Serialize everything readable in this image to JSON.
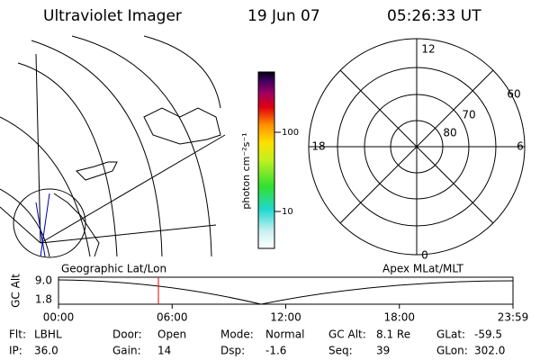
{
  "header": {
    "title": "Ultraviolet Imager",
    "date": "19 Jun 07",
    "time": "05:26:33 UT"
  },
  "colorbar": {
    "unit": "photon cm⁻²s⁻¹",
    "ticks": [
      "100",
      "10"
    ]
  },
  "polar": {
    "clock": [
      "12",
      "18",
      "6",
      "0"
    ],
    "lat": [
      "60",
      "70",
      "80"
    ]
  },
  "strip": {
    "left_label": "Geographic Lat/Lon",
    "right_label": "Apex MLat/MLT",
    "axis_label": "GC Alt",
    "ticks": [
      "9.0",
      "1.8"
    ],
    "time_ticks": [
      "00:00",
      "06:00",
      "12:00",
      "18:00",
      "23:59"
    ]
  },
  "footer": {
    "rows": [
      [
        [
          "Flt:",
          "LBHL"
        ],
        [
          "Door:",
          "Open"
        ],
        [
          "Mode:",
          "Normal"
        ],
        [
          "GC Alt:",
          "8.1 Re"
        ],
        [
          "GLat:",
          "-59.5"
        ]
      ],
      [
        [
          "IP:",
          "36.0"
        ],
        [
          "Gain:",
          "14"
        ],
        [
          "Dsp:",
          "-1.6"
        ],
        [
          "Seq:",
          "39"
        ],
        [
          "GLon:",
          "302.0"
        ]
      ]
    ]
  }
}
